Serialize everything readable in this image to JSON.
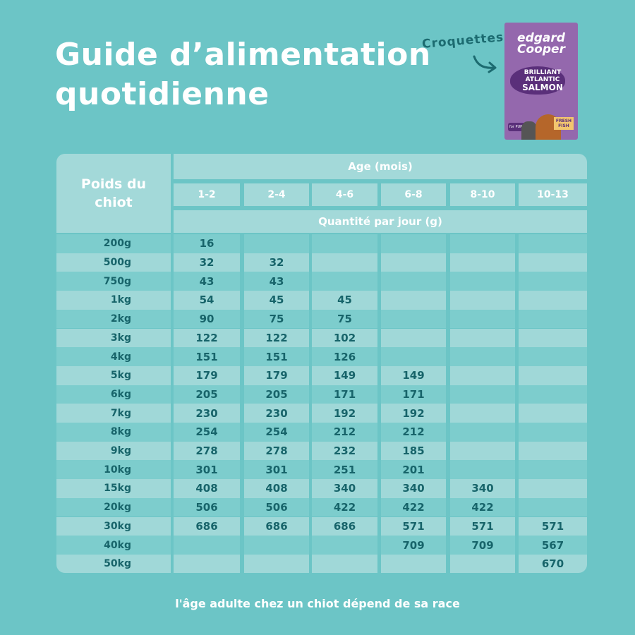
{
  "title": {
    "line1": "Guide d’alimentation",
    "line2": "quotidienne"
  },
  "product": {
    "label": "Croquettes",
    "brand_line1": "edgard",
    "brand_line2": "Cooper",
    "name_line1": "BRILLIANT",
    "name_line2": "ATLANTIC",
    "name_line3": "SALMON",
    "fresh": "FRESH FISH",
    "puppies": "for PUPPIES",
    "bag_color": "#9468ad"
  },
  "table": {
    "weight_header": "Poids du chiot",
    "age_header": "Age (mois)",
    "quantity_header": "Quantité par jour (g)",
    "ages": [
      "1-2",
      "2-4",
      "4-6",
      "6-8",
      "8-10",
      "10-13"
    ],
    "rows": [
      {
        "weight": "200g",
        "values": [
          "16",
          "",
          "",
          "",
          "",
          ""
        ]
      },
      {
        "weight": "500g",
        "values": [
          "32",
          "32",
          "",
          "",
          "",
          ""
        ]
      },
      {
        "weight": "750g",
        "values": [
          "43",
          "43",
          "",
          "",
          "",
          ""
        ]
      },
      {
        "weight": "1kg",
        "values": [
          "54",
          "45",
          "45",
          "",
          "",
          ""
        ]
      },
      {
        "weight": "2kg",
        "values": [
          "90",
          "75",
          "75",
          "",
          "",
          ""
        ]
      },
      {
        "weight": "3kg",
        "values": [
          "122",
          "122",
          "102",
          "",
          "",
          ""
        ]
      },
      {
        "weight": "4kg",
        "values": [
          "151",
          "151",
          "126",
          "",
          "",
          ""
        ]
      },
      {
        "weight": "5kg",
        "values": [
          "179",
          "179",
          "149",
          "149",
          "",
          ""
        ]
      },
      {
        "weight": "6kg",
        "values": [
          "205",
          "205",
          "171",
          "171",
          "",
          ""
        ]
      },
      {
        "weight": "7kg",
        "values": [
          "230",
          "230",
          "192",
          "192",
          "",
          ""
        ]
      },
      {
        "weight": "8kg",
        "values": [
          "254",
          "254",
          "212",
          "212",
          "",
          ""
        ]
      },
      {
        "weight": "9kg",
        "values": [
          "278",
          "278",
          "232",
          "185",
          "",
          ""
        ]
      },
      {
        "weight": "10kg",
        "values": [
          "301",
          "301",
          "251",
          "201",
          "",
          ""
        ]
      },
      {
        "weight": "15kg",
        "values": [
          "408",
          "408",
          "340",
          "340",
          "340",
          ""
        ]
      },
      {
        "weight": "20kg",
        "values": [
          "506",
          "506",
          "422",
          "422",
          "422",
          ""
        ]
      },
      {
        "weight": "30kg",
        "values": [
          "686",
          "686",
          "686",
          "571",
          "571",
          "571"
        ]
      },
      {
        "weight": "40kg",
        "values": [
          "",
          "",
          "",
          "709",
          "709",
          "567"
        ]
      },
      {
        "weight": "50kg",
        "values": [
          "",
          "",
          "",
          "",
          "",
          "670"
        ]
      }
    ]
  },
  "footnote": "l'âge adulte chez un chiot dépend de sa race",
  "colors": {
    "background": "#6cc5c6",
    "row_dark": "#7dcdcd",
    "row_light": "#a0d8d8",
    "text": "#17646a"
  }
}
